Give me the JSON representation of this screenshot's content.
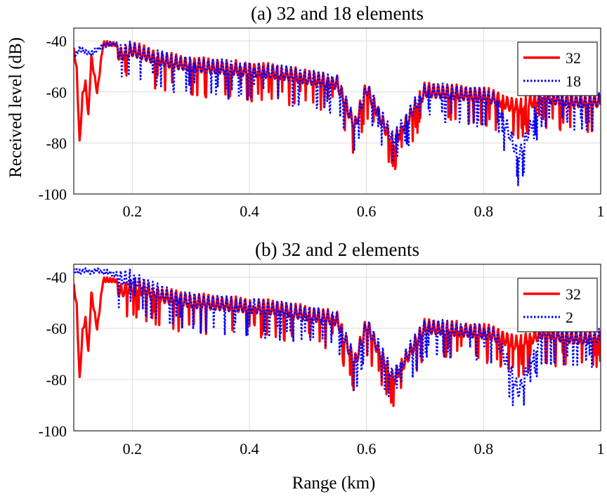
{
  "chart_data": [
    {
      "type": "line",
      "title": "(a) 32 and 18 elements",
      "xlabel": "",
      "ylabel": "Received level (dB)",
      "xlim": [
        0.1,
        1.0
      ],
      "ylim": [
        -100,
        -35
      ],
      "xticks": [
        "0.2",
        "0.4",
        "0.6",
        "0.8",
        "1"
      ],
      "yticks": [
        "-40",
        "-60",
        "-80",
        "-100"
      ],
      "grid": true,
      "legend_position": "top-right",
      "series": [
        {
          "name": "32",
          "style": "solid",
          "color": "#ff0000",
          "x": [
            0.1,
            0.105,
            0.11,
            0.115,
            0.12,
            0.125,
            0.13,
            0.14,
            0.15,
            0.16,
            0.17,
            0.18,
            0.2,
            0.25,
            0.3,
            0.35,
            0.4,
            0.45,
            0.5,
            0.55,
            0.58,
            0.6,
            0.645,
            0.7,
            0.75,
            0.8,
            0.82,
            0.86,
            0.9,
            0.95,
            1.0
          ],
          "y": [
            -42,
            -50,
            -79,
            -60,
            -55,
            -68,
            -45,
            -59,
            -40,
            -40,
            -40,
            -42,
            -40,
            -44,
            -46,
            -47,
            -48,
            -49,
            -51,
            -53,
            -70,
            -55,
            -77,
            -56,
            -57,
            -58,
            -59,
            -63,
            -58,
            -60,
            -60
          ]
        },
        {
          "name": "18",
          "style": "dotted",
          "color": "#0000ff",
          "x": [
            0.1,
            0.11,
            0.12,
            0.13,
            0.14,
            0.15,
            0.16,
            0.17,
            0.18,
            0.2,
            0.25,
            0.3,
            0.35,
            0.4,
            0.45,
            0.5,
            0.55,
            0.58,
            0.6,
            0.645,
            0.7,
            0.75,
            0.8,
            0.82,
            0.86,
            0.9,
            0.95,
            1.0
          ],
          "y": [
            -45,
            -42,
            -43,
            -44,
            -42,
            -41,
            -40,
            -40,
            -41,
            -40,
            -44,
            -46,
            -47,
            -48,
            -49,
            -51,
            -53,
            -70,
            -55,
            -75,
            -56,
            -57,
            -58,
            -59,
            -82,
            -58,
            -60,
            -60
          ]
        }
      ]
    },
    {
      "type": "line",
      "title": "(b) 32 and 2 elements",
      "xlabel": "Range (km)",
      "ylabel": "",
      "xlim": [
        0.1,
        1.0
      ],
      "ylim": [
        -100,
        -35
      ],
      "xticks": [
        "0.2",
        "0.4",
        "0.6",
        "0.8",
        "1"
      ],
      "yticks": [
        "-40",
        "-60",
        "-80",
        "-100"
      ],
      "grid": true,
      "legend_position": "top-right",
      "series": [
        {
          "name": "32",
          "style": "solid",
          "color": "#ff0000",
          "x": [
            0.1,
            0.105,
            0.11,
            0.115,
            0.12,
            0.125,
            0.13,
            0.14,
            0.15,
            0.16,
            0.17,
            0.18,
            0.2,
            0.25,
            0.3,
            0.35,
            0.4,
            0.45,
            0.5,
            0.55,
            0.58,
            0.6,
            0.645,
            0.7,
            0.75,
            0.8,
            0.82,
            0.86,
            0.9,
            0.95,
            1.0
          ],
          "y": [
            -42,
            -50,
            -79,
            -60,
            -55,
            -68,
            -45,
            -59,
            -40,
            -40,
            -40,
            -42,
            -40,
            -44,
            -46,
            -47,
            -48,
            -49,
            -51,
            -53,
            -70,
            -55,
            -77,
            -56,
            -57,
            -58,
            -59,
            -63,
            -58,
            -60,
            -60
          ]
        },
        {
          "name": "2",
          "style": "dotted",
          "color": "#0000ff",
          "x": [
            0.1,
            0.11,
            0.12,
            0.13,
            0.14,
            0.15,
            0.16,
            0.17,
            0.18,
            0.2,
            0.25,
            0.3,
            0.35,
            0.4,
            0.45,
            0.5,
            0.55,
            0.58,
            0.6,
            0.645,
            0.7,
            0.75,
            0.8,
            0.82,
            0.86,
            0.9,
            0.95,
            1.0
          ],
          "y": [
            -36,
            -37,
            -36,
            -37,
            -36,
            -37,
            -37,
            -38,
            -37,
            -37,
            -43,
            -46,
            -47,
            -48,
            -49,
            -51,
            -53,
            -70,
            -55,
            -75,
            -56,
            -57,
            -58,
            -59,
            -81,
            -58,
            -60,
            -60
          ]
        }
      ]
    }
  ]
}
